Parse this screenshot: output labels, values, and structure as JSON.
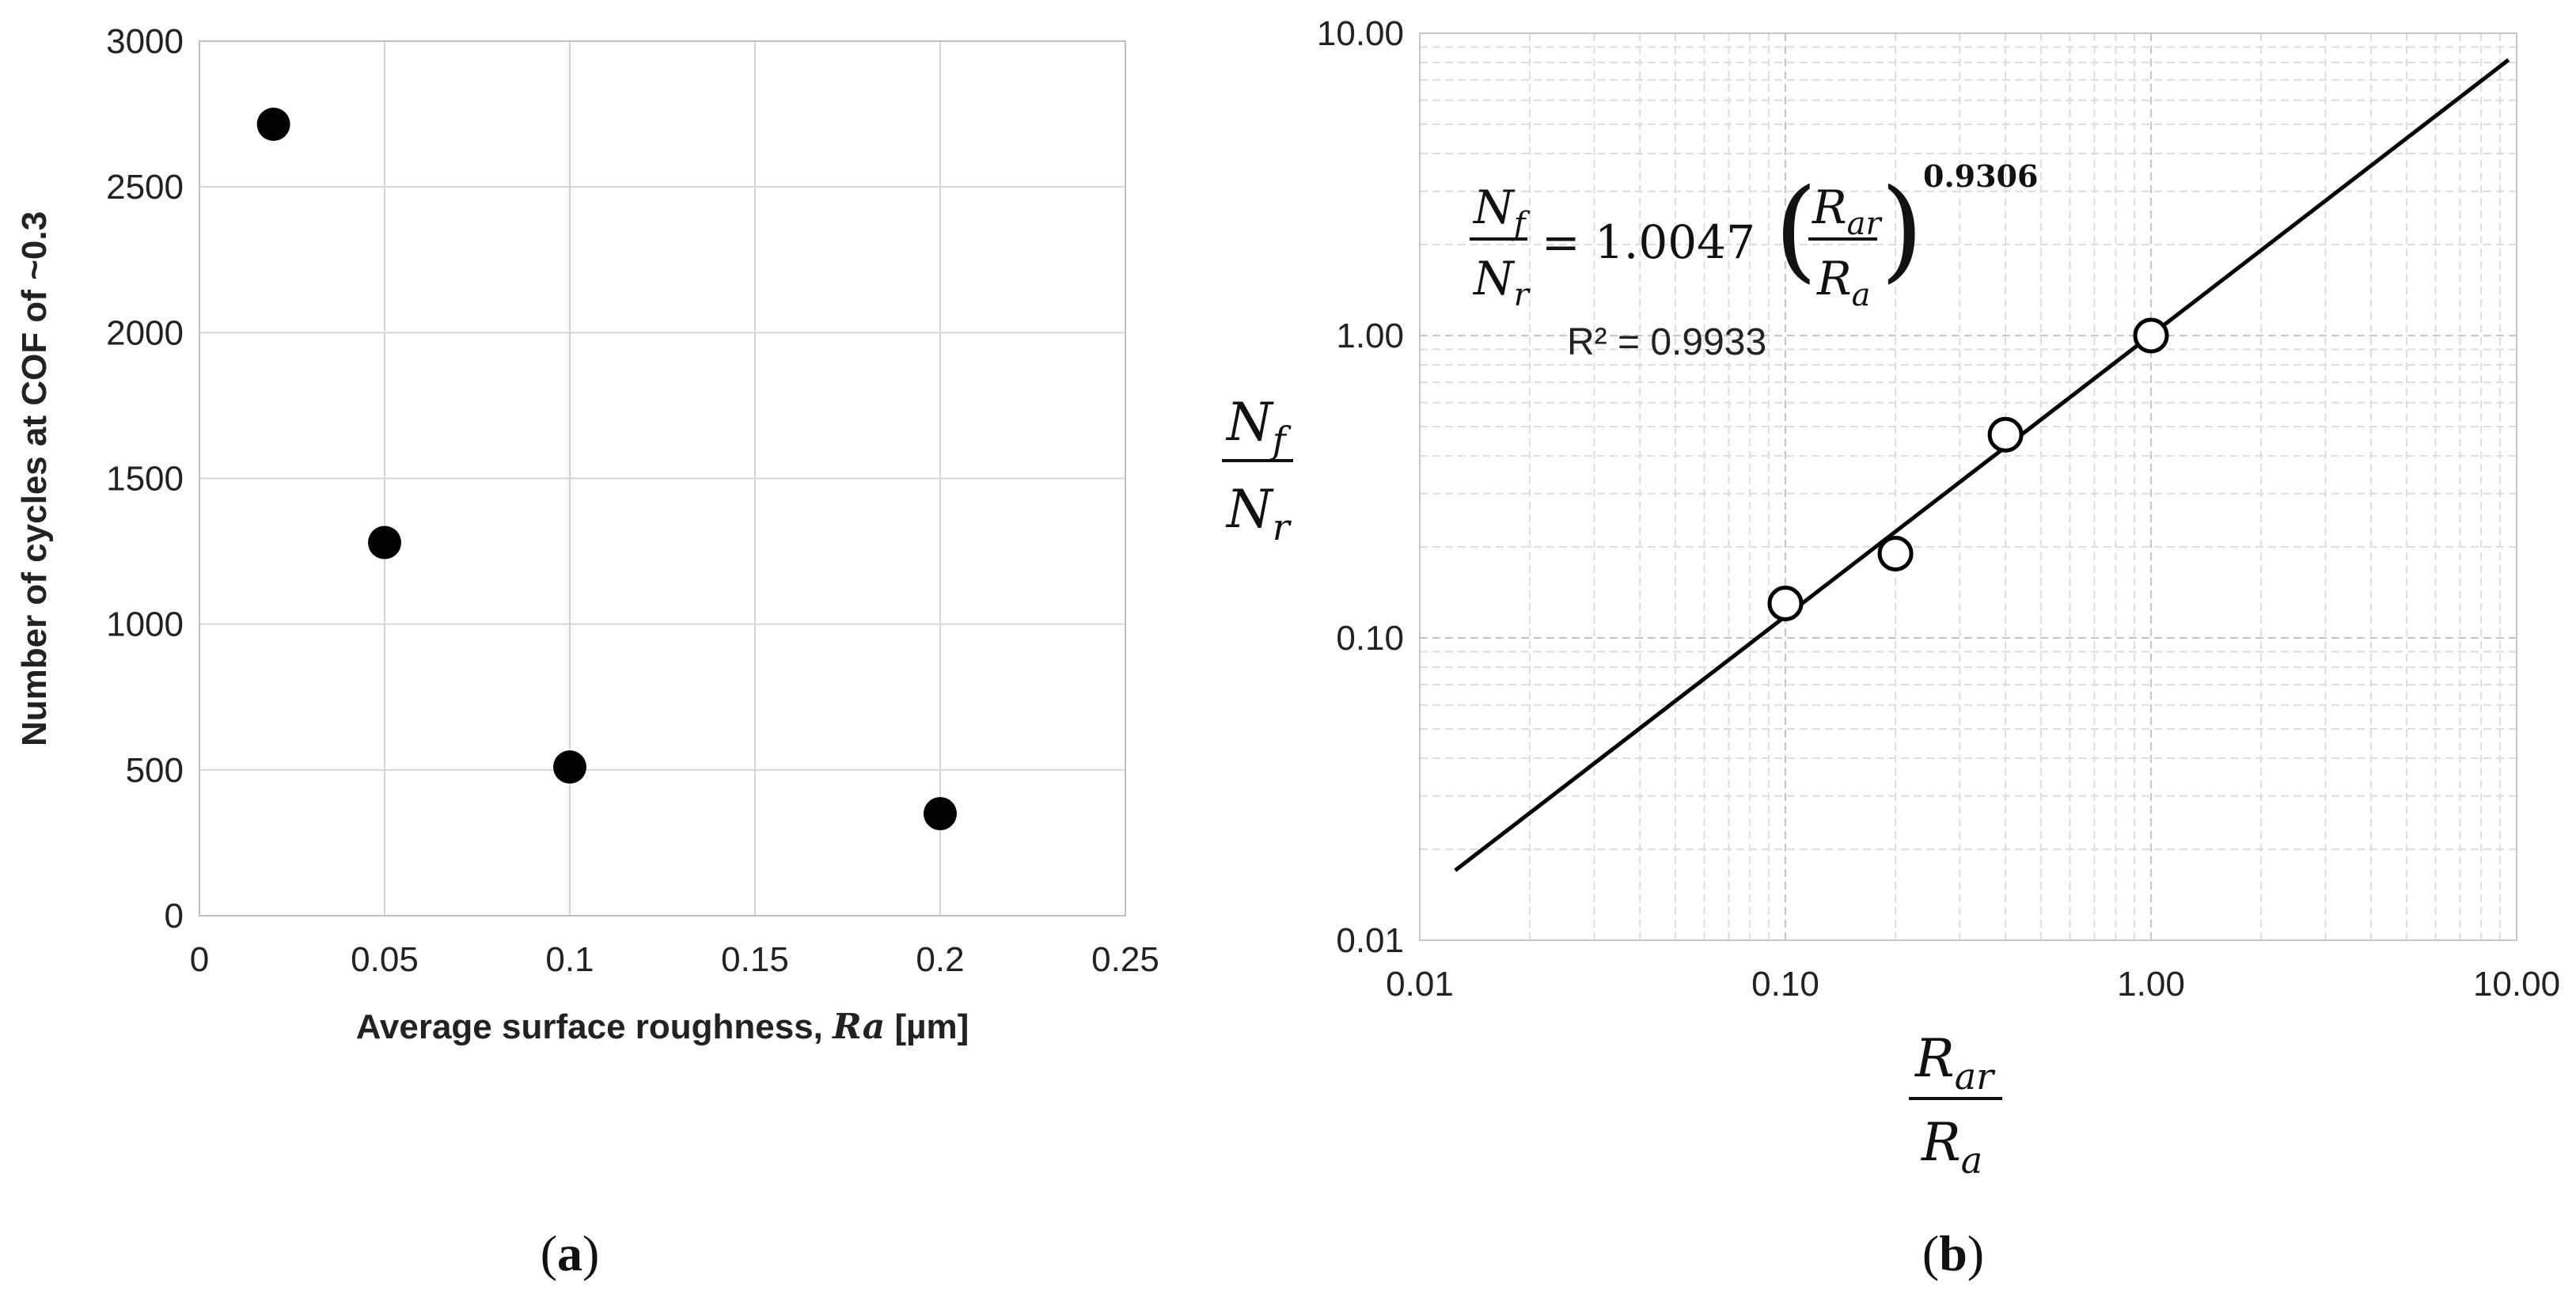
{
  "chart_data": [
    {
      "type": "scatter",
      "panel_label": "(a)",
      "title": "",
      "xlabel": "Average surface roughness, Ra [µm]",
      "xlabel_parts": [
        "Average surface roughness, ",
        "Ra",
        " [µm]"
      ],
      "ylabel": "Number of cycles at COF of ~0.3",
      "xlim": [
        0,
        0.25
      ],
      "ylim": [
        0,
        3000
      ],
      "x_ticks": [
        "0",
        "0.05",
        "0.1",
        "0.15",
        "0.2",
        "0.25"
      ],
      "y_ticks": [
        "0",
        "500",
        "1000",
        "1500",
        "2000",
        "2500",
        "3000"
      ],
      "grid": true,
      "marker": "filled-circle",
      "marker_color": "#000000",
      "series": [
        {
          "x": [
            0.02,
            0.05,
            0.1,
            0.2
          ],
          "y": [
            2715,
            1280,
            510,
            350
          ]
        }
      ]
    },
    {
      "type": "scatter",
      "panel_label": "(b)",
      "title": "",
      "xscale": "log",
      "yscale": "log",
      "xlim": [
        0.01,
        10
      ],
      "ylim": [
        0.01,
        10
      ],
      "x_ticks": [
        "0.01",
        "0.10",
        "1.00",
        "10.00"
      ],
      "y_ticks": [
        "0.01",
        "0.10",
        "1.00",
        "10.00"
      ],
      "xlabel": "Rar / Ra",
      "ylabel": "Nf / Nr",
      "grid": true,
      "grid_style": "dashed major and minor",
      "marker": "open-circle",
      "series": [
        {
          "x": [
            0.1,
            0.2,
            0.4,
            1.0
          ],
          "y": [
            0.13,
            0.19,
            0.47,
            1.0
          ]
        }
      ],
      "trendline": {
        "type": "power",
        "coefficient": 1.0047,
        "exponent": 0.9306,
        "x_range": [
          0.0125,
          9.5
        ],
        "coefficient_label": "= 1.0047",
        "exponent_label": "0.9306",
        "r2_label": "R² = 0.9933"
      }
    }
  ]
}
